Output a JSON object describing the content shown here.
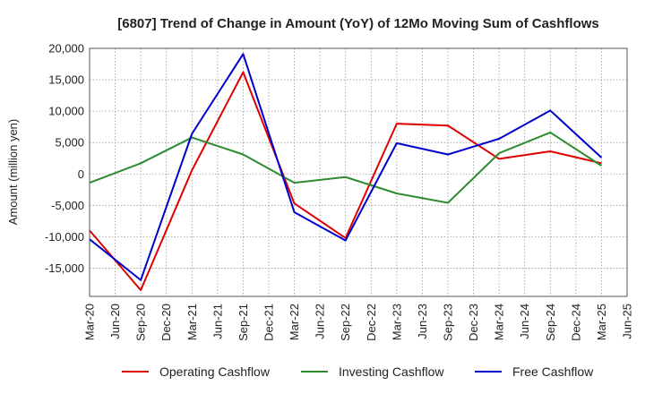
{
  "chart_data": {
    "type": "line",
    "title": "[6807]  Trend of Change in Amount (YoY) of 12Mo Moving Sum of Cashflows",
    "xlabel": "",
    "ylabel": "Amount (million yen)",
    "ylim": [
      -19500,
      20000
    ],
    "yticks": [
      20000,
      15000,
      10000,
      5000,
      0,
      -5000,
      -10000,
      -15000
    ],
    "ytick_labels": [
      "20,000",
      "15,000",
      "10,000",
      "5,000",
      "0",
      "-5,000",
      "-10,000",
      "-15,000"
    ],
    "categories": [
      "Mar-20",
      "Jun-20",
      "Sep-20",
      "Dec-20",
      "Mar-21",
      "Jun-21",
      "Sep-21",
      "Dec-21",
      "Mar-22",
      "Jun-22",
      "Sep-22",
      "Dec-22",
      "Mar-23",
      "Jun-23",
      "Sep-23",
      "Dec-23",
      "Mar-24",
      "Jun-24",
      "Sep-24",
      "Dec-24",
      "Mar-25",
      "Jun-25"
    ],
    "grid": true,
    "legend_position": "bottom",
    "series": [
      {
        "name": "Operating Cashflow",
        "color": "#e00000",
        "values": [
          -9000,
          null,
          -18500,
          null,
          600,
          null,
          16200,
          null,
          -4700,
          null,
          -10200,
          null,
          8000,
          null,
          7700,
          null,
          2400,
          null,
          3600,
          null,
          1700,
          null
        ]
      },
      {
        "name": "Investing Cashflow",
        "color": "#2e8b2e",
        "values": [
          -1400,
          null,
          1700,
          null,
          5800,
          null,
          3100,
          null,
          -1400,
          null,
          -500,
          null,
          -3100,
          null,
          -4600,
          null,
          3300,
          null,
          6600,
          null,
          1300,
          null
        ]
      },
      {
        "name": "Free Cashflow",
        "color": "#0000cc",
        "values": [
          -10400,
          null,
          -16900,
          null,
          6400,
          null,
          19100,
          null,
          -6100,
          null,
          -10600,
          null,
          4900,
          null,
          3100,
          null,
          5600,
          null,
          10100,
          null,
          2600,
          null
        ]
      }
    ]
  }
}
